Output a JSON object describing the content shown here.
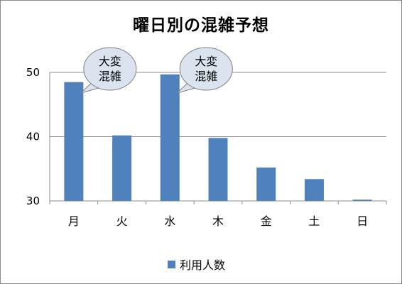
{
  "chart_data": {
    "type": "bar",
    "title": "曜日別の混雑予想",
    "categories": [
      "月",
      "火",
      "水",
      "木",
      "金",
      "土",
      "日"
    ],
    "series": [
      {
        "name": "利用人数",
        "values": [
          48.5,
          40.2,
          49.7,
          39.8,
          35.2,
          33.4,
          30.2
        ]
      }
    ],
    "ylim": [
      30,
      50
    ],
    "yticks": [
      30,
      40,
      50
    ],
    "grid": true,
    "legend_position": "bottom",
    "bar_color": "#4f81bd",
    "annotations": [
      {
        "text": [
          "大変",
          "混雑"
        ],
        "category": "月"
      },
      {
        "text": [
          "大変",
          "混雑"
        ],
        "category": "水"
      }
    ]
  }
}
